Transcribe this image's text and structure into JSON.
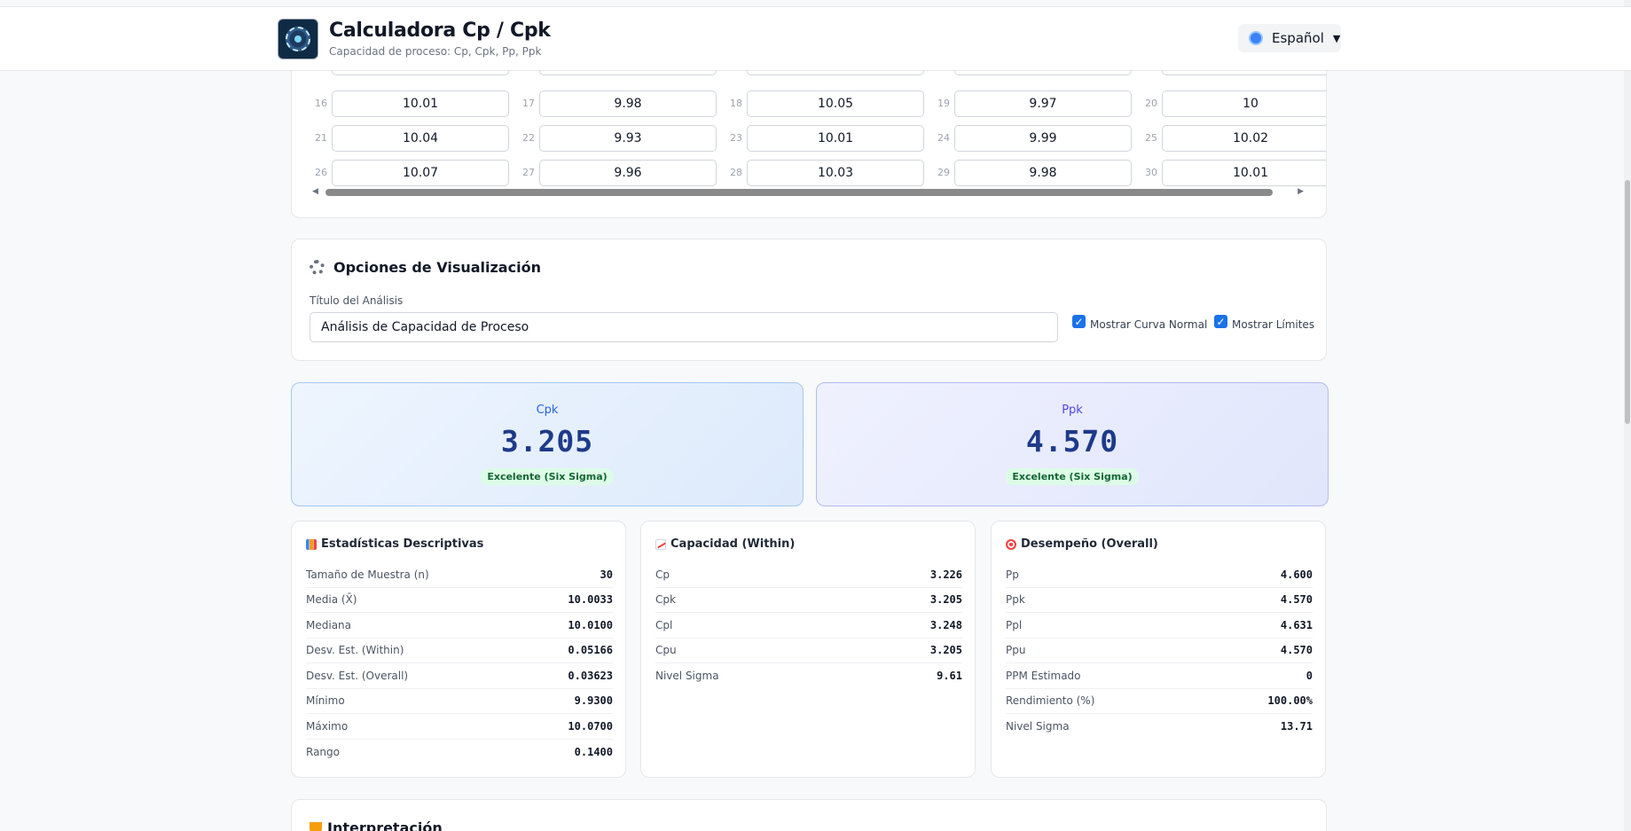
{
  "header": {
    "title": "Calculadora Cp / Cpk",
    "subtitle": "Capacidad de proceso: Cp, Cpk, Pp, Ppk",
    "language": "Español"
  },
  "data_grid": {
    "rows": [
      [
        {
          "index": "16",
          "value": "10.01"
        },
        {
          "index": "17",
          "value": "9.98"
        },
        {
          "index": "18",
          "value": "10.05"
        },
        {
          "index": "19",
          "value": "9.97"
        },
        {
          "index": "20",
          "value": "10"
        }
      ],
      [
        {
          "index": "21",
          "value": "10.04"
        },
        {
          "index": "22",
          "value": "9.93"
        },
        {
          "index": "23",
          "value": "10.01"
        },
        {
          "index": "24",
          "value": "9.99"
        },
        {
          "index": "25",
          "value": "10.02"
        }
      ],
      [
        {
          "index": "26",
          "value": "10.07"
        },
        {
          "index": "27",
          "value": "9.96"
        },
        {
          "index": "28",
          "value": "10.03"
        },
        {
          "index": "29",
          "value": "9.98"
        },
        {
          "index": "30",
          "value": "10.01"
        }
      ]
    ]
  },
  "options": {
    "title": "Opciones de Visualización",
    "analysis_title_label": "Título del Análisis",
    "analysis_title_value": "Análisis de Capacidad de Proceso",
    "show_normal_curve": "Mostrar Curva Normal",
    "show_limits": "Mostrar Límites"
  },
  "metrics": {
    "cpk": {
      "label": "Cpk",
      "value": "3.205",
      "badge": "Excelente (Six Sigma)"
    },
    "ppk": {
      "label": "Ppk",
      "value": "4.570",
      "badge": "Excelente (Six Sigma)"
    }
  },
  "descriptive": {
    "title": "Estadísticas Descriptivas",
    "rows": [
      {
        "k": "Tamaño de Muestra (n)",
        "v": "30"
      },
      {
        "k": "Media (X̄)",
        "v": "10.0033"
      },
      {
        "k": "Mediana",
        "v": "10.0100"
      },
      {
        "k": "Desv. Est. (Within)",
        "v": "0.05166"
      },
      {
        "k": "Desv. Est. (Overall)",
        "v": "0.03623"
      },
      {
        "k": "Mínimo",
        "v": "9.9300"
      },
      {
        "k": "Máximo",
        "v": "10.0700"
      },
      {
        "k": "Rango",
        "v": "0.1400"
      }
    ]
  },
  "within": {
    "title": "Capacidad (Within)",
    "rows": [
      {
        "k": "Cp",
        "v": "3.226"
      },
      {
        "k": "Cpk",
        "v": "3.205"
      },
      {
        "k": "Cpl",
        "v": "3.248"
      },
      {
        "k": "Cpu",
        "v": "3.205"
      },
      {
        "k": "Nivel Sigma",
        "v": "9.61"
      }
    ]
  },
  "overall": {
    "title": "Desempeño (Overall)",
    "rows": [
      {
        "k": "Pp",
        "v": "4.600"
      },
      {
        "k": "Ppk",
        "v": "4.570"
      },
      {
        "k": "Ppl",
        "v": "4.631"
      },
      {
        "k": "Ppu",
        "v": "4.570"
      },
      {
        "k": "PPM Estimado",
        "v": "0"
      },
      {
        "k": "Rendimiento (%)",
        "v": "100.00%"
      },
      {
        "k": "Nivel Sigma",
        "v": "13.71"
      }
    ]
  },
  "interpretation": {
    "title": "Interpretación"
  },
  "icons": {
    "language": "globe-icon",
    "options": "gear-icon",
    "descriptive": "bar-chart-icon",
    "within": "trend-chart-icon",
    "overall": "target-icon",
    "interpretation": "trophy-icon"
  }
}
